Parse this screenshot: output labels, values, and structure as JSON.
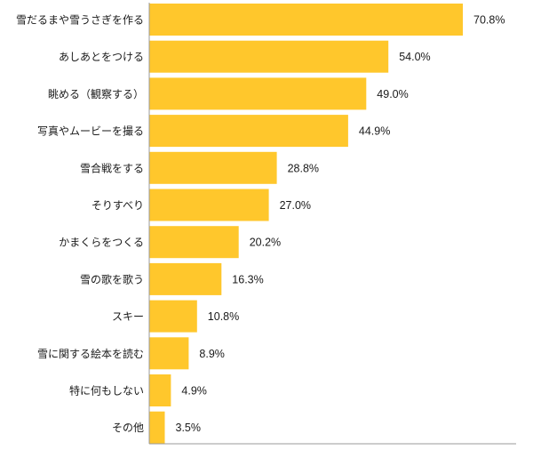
{
  "chart_data": {
    "type": "bar",
    "orientation": "horizontal",
    "categories": [
      "雪だるまや雪うさぎを作る",
      "あしあとをつける",
      "眺める（観察する）",
      "写真やムービーを撮る",
      "雪合戦をする",
      "そりすべり",
      "かまくらをつくる",
      "雪の歌を歌う",
      "スキー",
      "雪に関する絵本を読む",
      "特に何もしない",
      "その他"
    ],
    "values": [
      70.8,
      54.0,
      49.0,
      44.9,
      28.8,
      27.0,
      20.2,
      16.3,
      10.8,
      8.9,
      4.9,
      3.5
    ],
    "value_labels": [
      "70.8%",
      "54.0%",
      "49.0%",
      "44.9%",
      "28.8%",
      "27.0%",
      "20.2%",
      "16.3%",
      "10.8%",
      "8.9%",
      "4.9%",
      "3.5%"
    ],
    "xlim": [
      0,
      70.8
    ],
    "bar_color": "#FFC72C",
    "grid": false,
    "legend": "none"
  }
}
